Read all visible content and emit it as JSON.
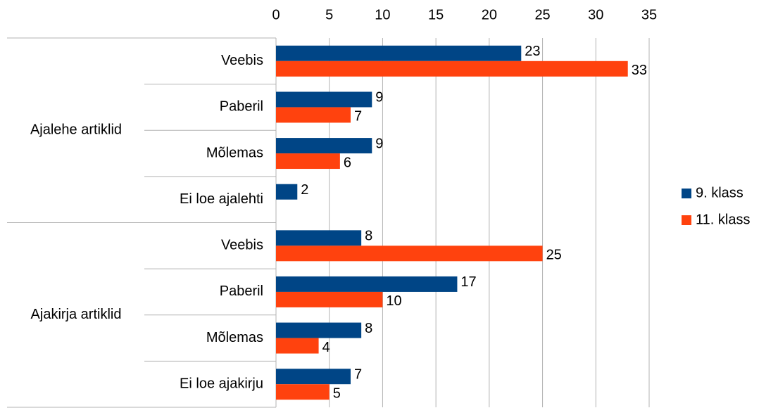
{
  "chart_data": {
    "type": "hbar",
    "groups": [
      {
        "name": "Ajalehe artiklid",
        "categories": [
          "Veebis",
          "Paberil",
          "Mõlemas",
          "Ei loe ajalehti"
        ]
      },
      {
        "name": "Ajakirja artiklid",
        "categories": [
          "Veebis",
          "Paberil",
          "Mõlemas",
          "Ei loe ajakirju"
        ]
      }
    ],
    "series": [
      {
        "name": "9. klass",
        "color": "#004586",
        "values": [
          23,
          9,
          9,
          2,
          8,
          17,
          8,
          7
        ]
      },
      {
        "name": "11. klass",
        "color": "#ff420e",
        "values": [
          33,
          7,
          6,
          null,
          25,
          10,
          4,
          5
        ]
      }
    ],
    "xlim": [
      0,
      35
    ],
    "xticks": [
      0,
      5,
      10,
      15,
      20,
      25,
      30,
      35
    ],
    "grid": true,
    "legend": "right"
  }
}
